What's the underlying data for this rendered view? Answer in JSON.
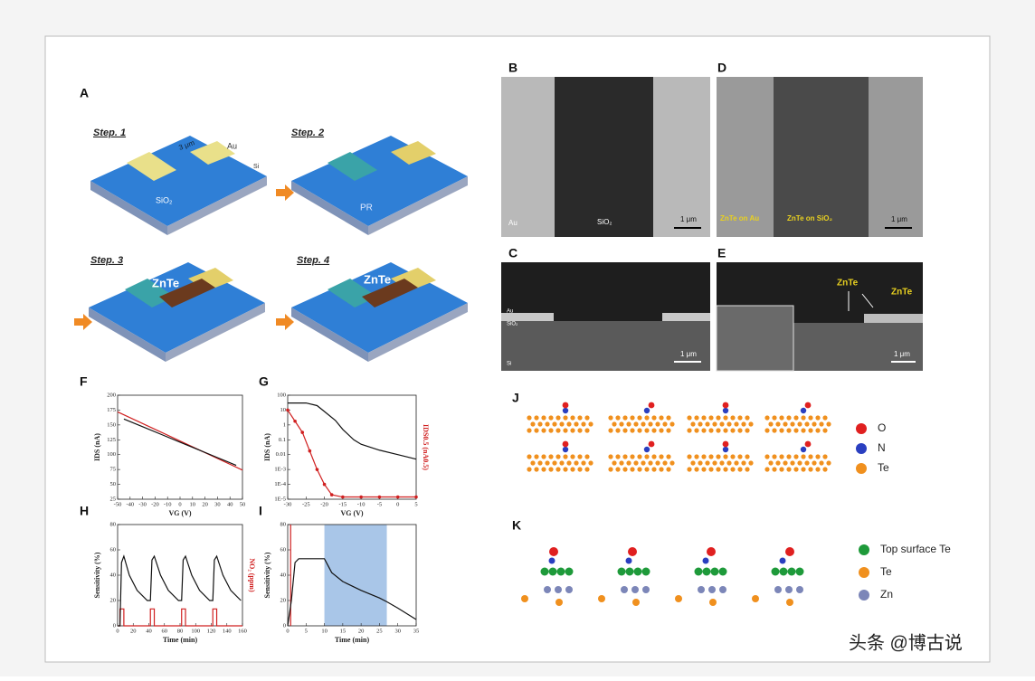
{
  "figure": {
    "panel_a": {
      "label": "A",
      "steps": [
        {
          "title": "Step. 1",
          "labels": [
            "Au",
            "Si",
            "SiO₂",
            "3 μm"
          ]
        },
        {
          "title": "Step. 2",
          "labels": [
            "PR"
          ]
        },
        {
          "title": "Step. 3",
          "labels": [
            "ZnTe"
          ]
        },
        {
          "title": "Step. 4",
          "labels": [
            "ZnTe"
          ]
        }
      ]
    },
    "micrographs": [
      {
        "label": "B",
        "texts": [
          "Au",
          "SiO₂",
          "1 μm"
        ]
      },
      {
        "label": "D",
        "texts": [
          "ZnTe on Au",
          "ZnTe on SiO₂",
          "1 μm"
        ]
      },
      {
        "label": "C",
        "texts": [
          "Au",
          "SiO₂",
          "Si",
          "1 μm"
        ]
      },
      {
        "label": "E",
        "texts": [
          "ZnTe",
          "ZnTe",
          "1 μm"
        ]
      }
    ],
    "plots": [
      {
        "label": "F",
        "type": "line",
        "xlabel": "VG (V)",
        "ylabel": "IDS (nA)",
        "xlim": [
          -50,
          50
        ],
        "ylim": [
          25,
          200
        ],
        "xticks": [
          -50,
          -40,
          -30,
          -20,
          -10,
          0,
          10,
          20,
          30,
          40,
          50
        ],
        "yticks": [
          25,
          50,
          75,
          100,
          125,
          150,
          175,
          200
        ],
        "series": [
          {
            "color": "#d02020",
            "x": [
              -50,
              50
            ],
            "values": [
              172,
              74
            ]
          },
          {
            "color": "#111111",
            "x": [
              -45,
              -30,
              -15,
              0,
              15,
              30,
              45
            ],
            "values": [
              160,
              147,
              134,
              121,
              108,
              95,
              82
            ]
          }
        ]
      },
      {
        "label": "G",
        "type": "line",
        "xlabel": "VG (V)",
        "ylabel": "IDS (nA)",
        "y2label": "IDS0.5 (nA0.5)",
        "log": true,
        "xlim": [
          -30,
          5
        ],
        "ylim": [
          1e-05,
          100
        ],
        "y2lim": [
          0,
          14
        ],
        "xticks": [
          -30,
          -25,
          -20,
          -15,
          -10,
          -5,
          0,
          5
        ],
        "yticks": [
          100,
          10,
          1,
          0.1,
          0.01,
          {
            "value": 0.001,
            "label": "1E-3"
          },
          {
            "value": 0.0001,
            "label": "1E-4"
          },
          {
            "value": 1e-05,
            "label": "1E-5"
          }
        ],
        "series": [
          {
            "color": "#111111",
            "x": [
              -30,
              -25,
              -22,
              -20,
              -17,
              -15,
              -12,
              -10,
              -5,
              0,
              5
            ],
            "values": [
              30,
              30,
              20,
              8,
              2,
              0.5,
              0.1,
              0.05,
              0.02,
              0.01,
              0.005
            ]
          },
          {
            "color": "#d02020",
            "axis": "y2",
            "markers": true,
            "x": [
              -30,
              -28,
              -26,
              -24,
              -22,
              -20,
              -18,
              -15,
              -10,
              -5,
              0,
              5
            ],
            "values": [
              12,
              10.5,
              9,
              6.5,
              4,
              2,
              0.6,
              0.3,
              0.3,
              0.3,
              0.3,
              0.3
            ]
          }
        ]
      },
      {
        "label": "H",
        "type": "line",
        "xlabel": "Time (min)",
        "ylabel": "Sensitivity (%)",
        "y2label": "NO₂ (ppm)",
        "xlim": [
          0,
          160
        ],
        "ylim": [
          0,
          80
        ],
        "y2lim": [
          0,
          60
        ],
        "xticks": [
          0,
          20,
          40,
          60,
          80,
          100,
          120,
          140,
          160
        ],
        "yticks": [
          0,
          20,
          40,
          60,
          80
        ],
        "series": [
          {
            "color": "#d02020",
            "axis": "y2",
            "x": [
              0,
              3,
              3,
              8,
              8,
              42,
              42,
              47,
              47,
              82,
              82,
              87,
              87,
              122,
              122,
              127,
              127,
              160
            ],
            "values": [
              0,
              0,
              10,
              10,
              0,
              0,
              10,
              10,
              0,
              0,
              10,
              10,
              0,
              0,
              10,
              10,
              0,
              0
            ]
          },
          {
            "color": "#111111",
            "x": [
              0,
              3,
              5,
              8,
              15,
              25,
              38,
              42,
              44,
              47,
              55,
              65,
              78,
              82,
              84,
              87,
              95,
              105,
              118,
              122,
              124,
              127,
              135,
              145,
              158
            ],
            "values": [
              0,
              0,
              50,
              55,
              40,
              28,
              20,
              20,
              52,
              55,
              40,
              28,
              20,
              20,
              52,
              55,
              40,
              28,
              20,
              20,
              52,
              55,
              40,
              28,
              20
            ]
          }
        ]
      },
      {
        "label": "I",
        "type": "line",
        "xlabel": "Time (min)",
        "ylabel": "Sensitivity (%)",
        "xlim": [
          0,
          35
        ],
        "ylim": [
          0,
          80
        ],
        "y2lim": [
          0,
          10
        ],
        "shade": [
          10,
          27
        ],
        "xticks": [
          0,
          5,
          10,
          15,
          20,
          25,
          30,
          35
        ],
        "yticks": [
          0,
          20,
          40,
          60,
          80
        ],
        "series": [
          {
            "color": "#d02020",
            "axis": "y2",
            "x": [
              0.8,
              0.8
            ],
            "values": [
              0,
              10
            ]
          },
          {
            "color": "#111111",
            "x": [
              0,
              1,
              2,
              3,
              5,
              10,
              12,
              15,
              20,
              25,
              27,
              30,
              35
            ],
            "values": [
              0,
              20,
              50,
              53,
              53,
              53,
              42,
              35,
              28,
              22,
              19,
              14,
              5
            ]
          }
        ]
      }
    ],
    "structures": [
      {
        "label": "J",
        "legend": [
          {
            "name": "O",
            "color": "#e02020"
          },
          {
            "name": "N",
            "color": "#2a3fc0"
          },
          {
            "name": "Te",
            "color": "#f0901e"
          }
        ]
      },
      {
        "label": "K",
        "legend": [
          {
            "name": "Top surface Te",
            "color": "#1e9a3a"
          },
          {
            "name": "Te",
            "color": "#f0901e"
          },
          {
            "name": "Zn",
            "color": "#7c86b8"
          }
        ]
      }
    ],
    "watermark": "头条 @博古说"
  }
}
